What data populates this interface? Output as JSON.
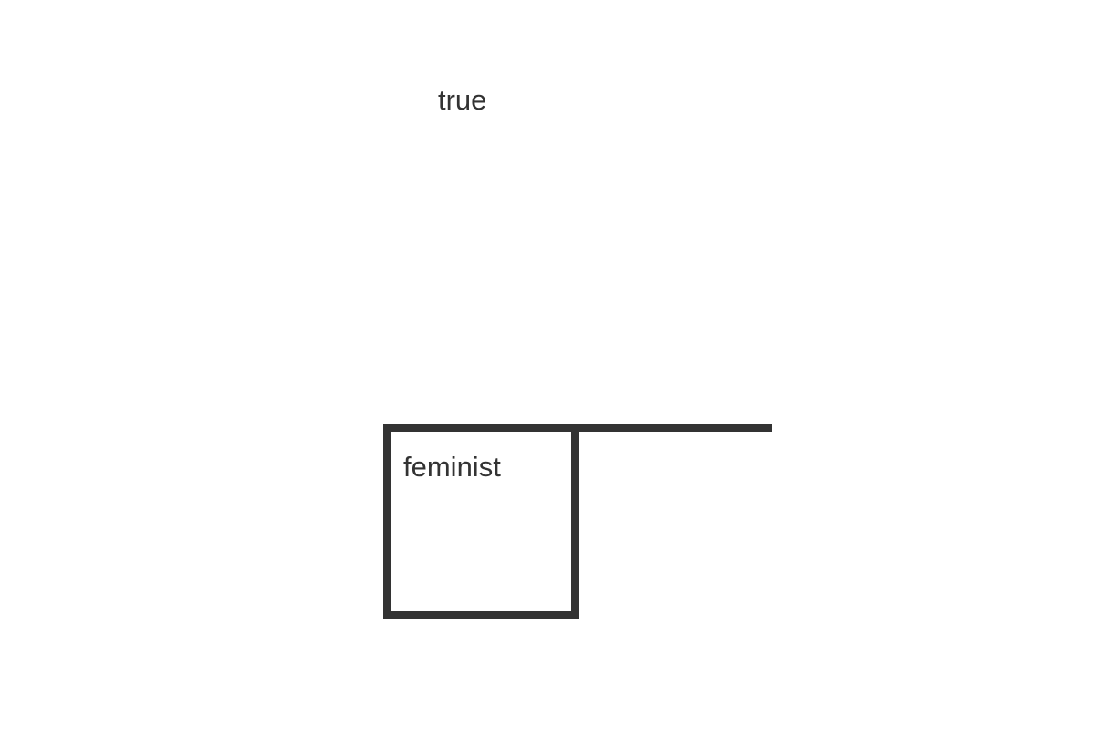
{
  "labels": {
    "top": "true",
    "box": "feminist"
  },
  "colors": {
    "ink": "#333333",
    "background": "#ffffff"
  }
}
